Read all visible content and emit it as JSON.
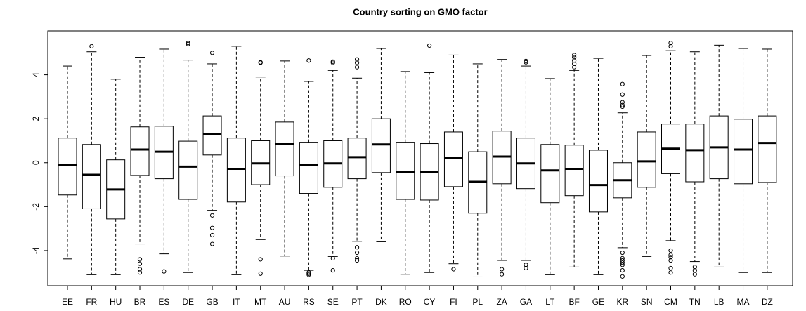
{
  "chart_data": {
    "type": "box",
    "title": "Country sorting on GMO factor",
    "categories": [
      "EE",
      "FR",
      "HU",
      "BR",
      "ES",
      "DE",
      "GB",
      "IT",
      "MT",
      "AU",
      "RS",
      "SE",
      "PT",
      "DK",
      "RO",
      "CY",
      "FI",
      "PL",
      "ZA",
      "GA",
      "LT",
      "BF",
      "GE",
      "KR",
      "SN",
      "CM",
      "TN",
      "LB",
      "MA",
      "DZ"
    ],
    "whisker_low": [
      -4.38,
      -5.1,
      -5.1,
      -3.7,
      -4.15,
      -5.0,
      -2.17,
      -5.1,
      -3.5,
      -4.25,
      -4.9,
      -4.27,
      -3.58,
      -3.6,
      -5.08,
      -5.0,
      -4.6,
      -5.2,
      -4.45,
      -4.45,
      -5.1,
      -4.75,
      -5.1,
      -3.87,
      -4.27,
      -3.55,
      -4.5,
      -4.75,
      -5.0,
      -5.0
    ],
    "q1": [
      -1.47,
      -2.1,
      -2.56,
      -0.58,
      -0.73,
      -1.67,
      0.35,
      -1.79,
      -1.0,
      -0.6,
      -1.4,
      -1.12,
      -0.73,
      -0.45,
      -1.67,
      -1.7,
      -1.09,
      -2.3,
      -0.96,
      -1.18,
      -1.82,
      -1.5,
      -2.24,
      -1.6,
      -1.12,
      -0.5,
      -0.87,
      -0.73,
      -0.96,
      -0.9
    ],
    "median": [
      -0.1,
      -0.55,
      -1.22,
      0.6,
      0.5,
      -0.18,
      1.3,
      -0.28,
      -0.03,
      0.87,
      -0.12,
      -0.03,
      0.25,
      0.83,
      -0.42,
      -0.42,
      0.22,
      -0.87,
      0.28,
      -0.03,
      -0.35,
      -0.28,
      -1.02,
      -0.8,
      0.06,
      0.64,
      0.57,
      0.7,
      0.6,
      0.9
    ],
    "q3": [
      1.12,
      0.83,
      0.13,
      1.63,
      1.66,
      0.98,
      2.13,
      1.12,
      1.0,
      1.85,
      0.93,
      1.0,
      1.12,
      2.0,
      0.93,
      0.87,
      1.4,
      0.5,
      1.44,
      1.12,
      0.83,
      0.8,
      0.57,
      0.0,
      1.4,
      1.76,
      1.76,
      2.13,
      1.98,
      2.13
    ],
    "whisker_high": [
      4.4,
      5.05,
      3.8,
      4.8,
      5.17,
      4.67,
      4.5,
      5.3,
      3.9,
      4.63,
      3.7,
      4.2,
      3.85,
      5.2,
      4.15,
      4.1,
      4.9,
      4.5,
      4.7,
      4.4,
      3.83,
      4.2,
      4.75,
      2.27,
      4.88,
      5.1,
      5.05,
      5.35,
      5.2,
      5.17
    ],
    "outliers": [
      [],
      [
        5.3
      ],
      [],
      [
        -4.4,
        -4.6,
        -4.85,
        -5.0
      ],
      [
        -4.95
      ],
      [
        5.45,
        5.4
      ],
      [
        5.0,
        -2.4,
        -2.97,
        -3.3,
        -3.7
      ],
      [],
      [
        4.57,
        4.55,
        -4.4,
        -5.05
      ],
      [],
      [
        4.65,
        -5.0,
        -5.05,
        -5.1
      ],
      [
        4.6,
        4.55,
        -4.35,
        -4.9
      ],
      [
        4.7,
        4.55,
        4.35,
        -3.85,
        -4.1,
        -4.35,
        -4.45
      ],
      [],
      [],
      [
        5.33
      ],
      [
        -4.85
      ],
      [],
      [
        -4.85,
        -5.08
      ],
      [
        4.63,
        4.57,
        -4.65,
        -4.8
      ],
      [],
      [
        4.9,
        4.8,
        4.65,
        4.5,
        4.35
      ],
      [],
      [
        3.58,
        3.1,
        2.75,
        2.62,
        2.55,
        -4.1,
        -4.35,
        -4.45,
        -4.55,
        -4.65,
        -4.9,
        -5.18
      ],
      [],
      [
        5.45,
        5.3,
        -4.0,
        -4.2,
        -4.3,
        -4.45,
        -4.8,
        -5.0
      ],
      [
        -4.75,
        -4.9,
        -5.08
      ],
      [],
      [],
      []
    ],
    "color": "#000000",
    "ylim": [
      -5.6,
      6.0
    ],
    "yticks": [
      -4,
      -2,
      0,
      2,
      4
    ],
    "grid": false
  }
}
